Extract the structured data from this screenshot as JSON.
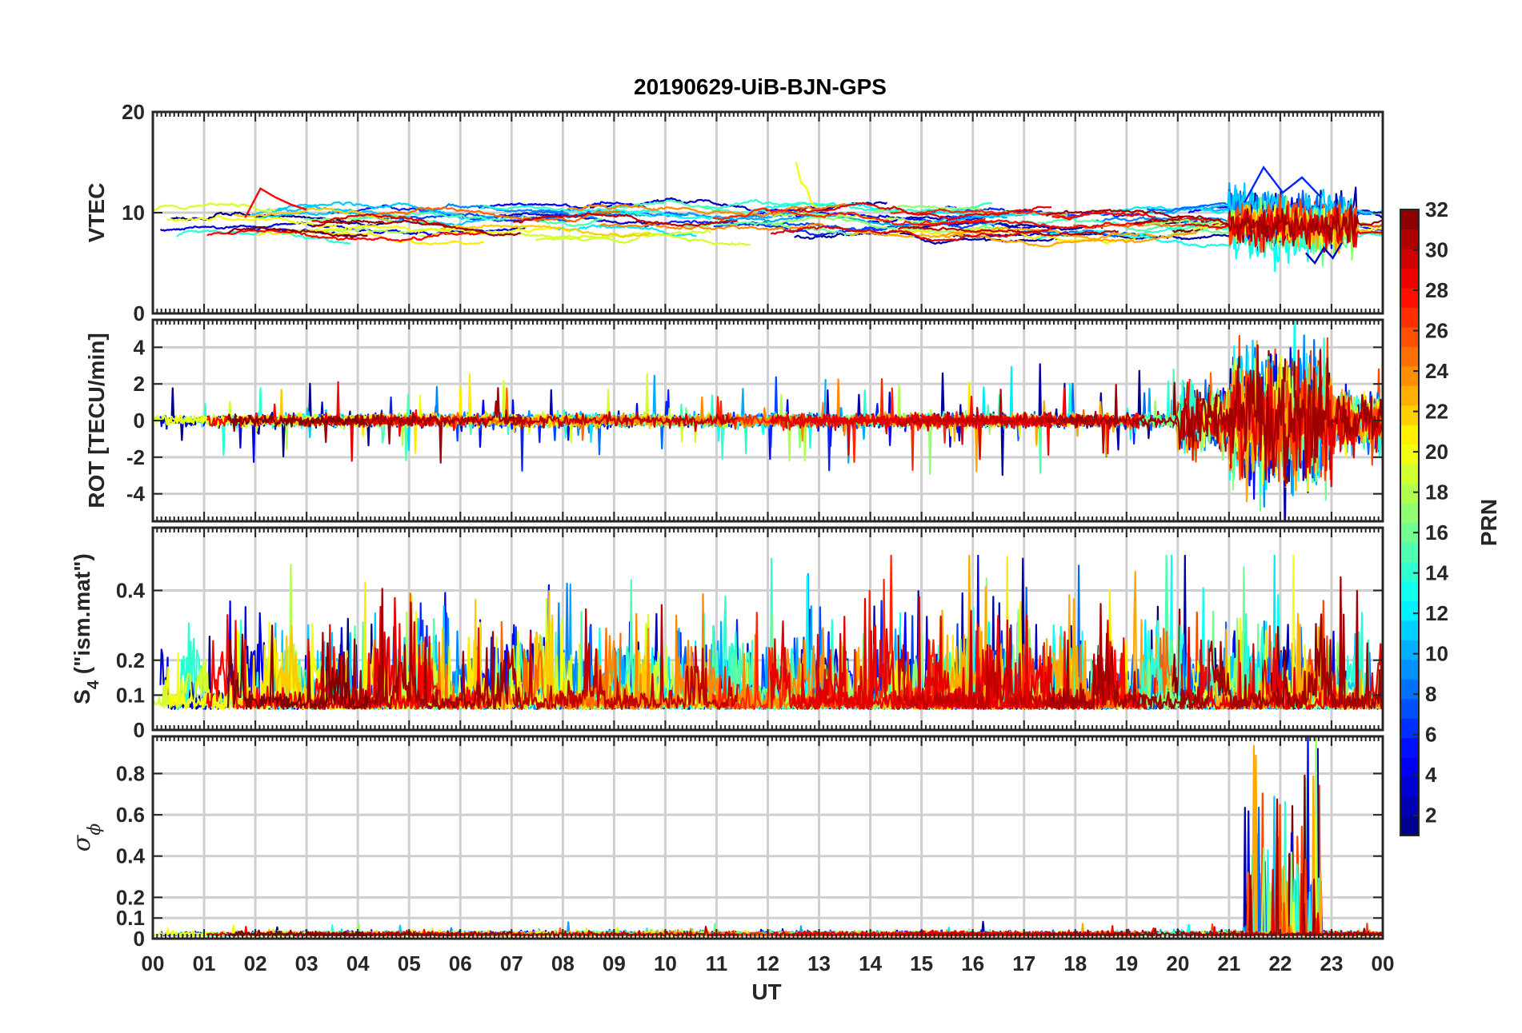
{
  "chart_data": {
    "type": "line",
    "title": "20190629-UiB-BJN-GPS",
    "xlabel": "UT",
    "x_ticks": [
      "00",
      "01",
      "02",
      "03",
      "04",
      "05",
      "06",
      "07",
      "08",
      "09",
      "10",
      "11",
      "12",
      "13",
      "14",
      "15",
      "16",
      "17",
      "18",
      "19",
      "20",
      "21",
      "22",
      "23",
      "00"
    ],
    "x_range_hours": [
      0,
      24
    ],
    "grid": true,
    "colorbar": {
      "label": "PRN",
      "range": [
        1,
        32
      ],
      "ticks": [
        "2",
        "4",
        "6",
        "8",
        "10",
        "12",
        "14",
        "16",
        "18",
        "20",
        "22",
        "24",
        "26",
        "28",
        "30",
        "32"
      ],
      "colormap": "jet"
    },
    "panels": [
      {
        "id": "vtec",
        "ylabel": "VTEC",
        "ylim": [
          0,
          20
        ],
        "y_ticks": [
          0,
          10,
          20
        ],
        "y_tick_labels": [
          "0",
          "10",
          "20"
        ],
        "baseline": 9.0,
        "spread": 1.6,
        "spike_prob": 0.0,
        "features": [
          {
            "prn": 20,
            "start": 12.55,
            "end": 12.95,
            "values": [
              15.0,
              13.0,
              12.5,
              11.0,
              10.5
            ]
          },
          {
            "prn": 28,
            "start": 1.8,
            "end": 3.0,
            "values": [
              9.5,
              12.4,
              11.5,
              10.8,
              10.3
            ]
          },
          {
            "prn": 6,
            "start": 21.3,
            "end": 22.8,
            "values": [
              11.0,
              14.5,
              12.0,
              13.5,
              11.5
            ]
          },
          {
            "prn": 3,
            "start": 22.5,
            "end": 23.2,
            "values": [
              6.0,
              5.0,
              6.5,
              5.5,
              7.0
            ]
          }
        ]
      },
      {
        "id": "rot",
        "ylabel": "ROT [TECU/min]",
        "ylim": [
          -5.5,
          5.5
        ],
        "y_ticks": [
          -4,
          -2,
          0,
          2,
          4
        ],
        "y_tick_labels": [
          "-4",
          "-2",
          "0",
          "2",
          "4"
        ],
        "baseline": 0.0,
        "spread": 0.15,
        "spike_prob": 0.02,
        "storm": {
          "start": 20.0,
          "end": 24.0,
          "amplitude": 1.6
        }
      },
      {
        "id": "s4",
        "ylabel": "S4 (\"ism.mat\")",
        "ylabel_main": "S",
        "ylabel_sub": "4",
        "ylabel_rest": " (\"ism.mat\")",
        "ylim": [
          0,
          0.58
        ],
        "y_ticks": [
          0,
          0.1,
          0.2,
          0.4
        ],
        "y_tick_labels": [
          "0",
          "0.1",
          "0.2",
          "0.4"
        ],
        "baseline": 0.06,
        "spread": 0.025,
        "spike_prob": 0.05
      },
      {
        "id": "sigma",
        "ylabel": "σφ",
        "ylabel_sigma": "σ",
        "ylabel_phi": "ϕ",
        "ylim": [
          0,
          0.98
        ],
        "y_ticks": [
          0,
          0.1,
          0.2,
          0.4,
          0.6,
          0.8
        ],
        "y_tick_labels": [
          "0",
          "0.1",
          "0.2",
          "0.4",
          "0.6",
          "0.8"
        ],
        "baseline": 0.015,
        "spread": 0.008,
        "spike_prob": 0.01,
        "storm": {
          "start": 21.3,
          "end": 22.8,
          "amplitude": 0.9
        }
      }
    ]
  }
}
